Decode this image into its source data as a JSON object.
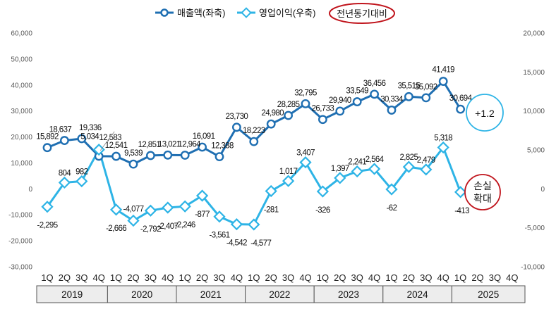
{
  "chart_data": {
    "type": "line",
    "legend": {
      "placement": "top-center",
      "items": [
        "매출액(좌축)",
        "영업이익(우축)"
      ],
      "extra_label": "전년동기대비"
    },
    "x_quarters": [
      "1Q",
      "2Q",
      "3Q",
      "4Q",
      "1Q",
      "2Q",
      "3Q",
      "4Q",
      "1Q",
      "2Q",
      "3Q",
      "4Q",
      "1Q",
      "2Q",
      "3Q",
      "4Q",
      "1Q",
      "2Q",
      "3Q",
      "4Q",
      "1Q",
      "2Q",
      "3Q",
      "4Q",
      "1Q",
      "2Q",
      "3Q",
      "4Q"
    ],
    "years": [
      "2019",
      "2020",
      "2021",
      "2022",
      "2023",
      "2024",
      "2025"
    ],
    "left_axis": {
      "ylim": [
        -30000,
        60000
      ],
      "ticks": [
        "60,000",
        "50,000",
        "40,000",
        "30,000",
        "20,000",
        "10,000",
        "0",
        "-10,000",
        "-20,000",
        "-30,000"
      ]
    },
    "right_axis": {
      "ylim": [
        -10000,
        20000
      ],
      "ticks": [
        "20,000",
        "15,000",
        "10,000",
        "5,000",
        "0",
        "-5,000",
        "-10,000"
      ]
    },
    "series": [
      {
        "name": "매출액(좌축)",
        "axis": "left",
        "color": "#1F6FB2",
        "values": [
          15892,
          18637,
          19336,
          12583,
          12541,
          9539,
          12851,
          13021,
          12964,
          16091,
          12388,
          23730,
          18223,
          24980,
          28285,
          32795,
          26733,
          29940,
          33549,
          36456,
          30334,
          35515,
          35092,
          41419,
          30694,
          null,
          null,
          null
        ],
        "labels": [
          "15,892",
          "18,637",
          "19,336",
          "12,583",
          "12,541",
          "9,539",
          "12,851",
          "13,021",
          "12,964",
          "16,091",
          "12,388",
          "23,730",
          "18,223",
          "24,980",
          "28,285",
          "32,795",
          "26,733",
          "29,940",
          "33,549",
          "36,456",
          "30,334",
          "35,515",
          "35,092",
          "41,419",
          "30,694",
          "",
          "",
          ""
        ]
      },
      {
        "name": "영업이익(우축)",
        "axis": "right",
        "color": "#2EB4E6",
        "values": [
          -2295,
          804,
          982,
          5034,
          -2666,
          -4077,
          -2792,
          -2407,
          -2246,
          -877,
          -3561,
          -4542,
          -4577,
          -281,
          1017,
          3407,
          -326,
          1397,
          2241,
          2564,
          -62,
          2825,
          2479,
          5318,
          -413,
          null,
          null,
          null
        ],
        "labels": [
          "-2,295",
          "804",
          "982",
          "5,034",
          "-2,666",
          "-4,077",
          "-2,792",
          "-2,407",
          "-2,246",
          "-877",
          "-3,561",
          "-4,542",
          "-4,577",
          "-281",
          "1,017",
          "3,407",
          "-326",
          "1,397",
          "2,241",
          "2,564",
          "-62",
          "2,825",
          "2,479",
          "5,318",
          "-413",
          "",
          "",
          ""
        ]
      }
    ],
    "annotations": [
      {
        "text": "+1.2",
        "border_color": "#2EB4E6"
      },
      {
        "lines": [
          "손실",
          "확대"
        ],
        "border_color": "#C0141C"
      }
    ]
  }
}
